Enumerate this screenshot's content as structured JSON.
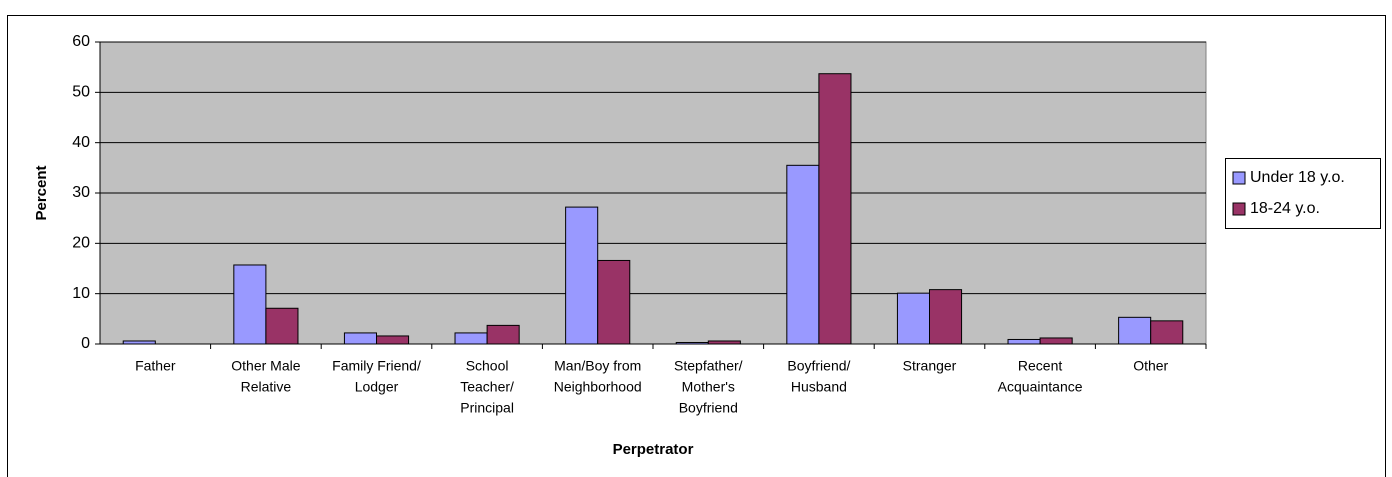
{
  "chart_data": {
    "type": "bar",
    "categories": [
      [
        "Father"
      ],
      [
        "Other Male",
        "Relative"
      ],
      [
        "Family Friend/",
        "Lodger"
      ],
      [
        "School",
        "Teacher/",
        "Principal"
      ],
      [
        "Man/Boy from",
        "Neighborhood"
      ],
      [
        "Stepfather/",
        "Mother's",
        "Boyfriend"
      ],
      [
        "Boyfriend/",
        "Husband"
      ],
      [
        "Stranger"
      ],
      [
        "Recent",
        "Acquaintance"
      ],
      [
        "Other"
      ]
    ],
    "series": [
      {
        "name": "Under 18 y.o.",
        "color": "#9999ff",
        "values": [
          0.6,
          15.7,
          2.2,
          2.2,
          27.2,
          0.3,
          35.5,
          10.1,
          0.9,
          5.3
        ]
      },
      {
        "name": "18-24 y.o.",
        "color": "#993366",
        "values": [
          0,
          7.1,
          1.6,
          3.7,
          16.6,
          0.6,
          53.7,
          10.8,
          1.2,
          4.6
        ]
      }
    ],
    "xlabel": "Perpetrator",
    "ylabel": "Percent",
    "ylim": [
      0,
      60
    ],
    "yticks": [
      0,
      10,
      20,
      30,
      40,
      50,
      60
    ],
    "grid": true,
    "legend": "right"
  }
}
